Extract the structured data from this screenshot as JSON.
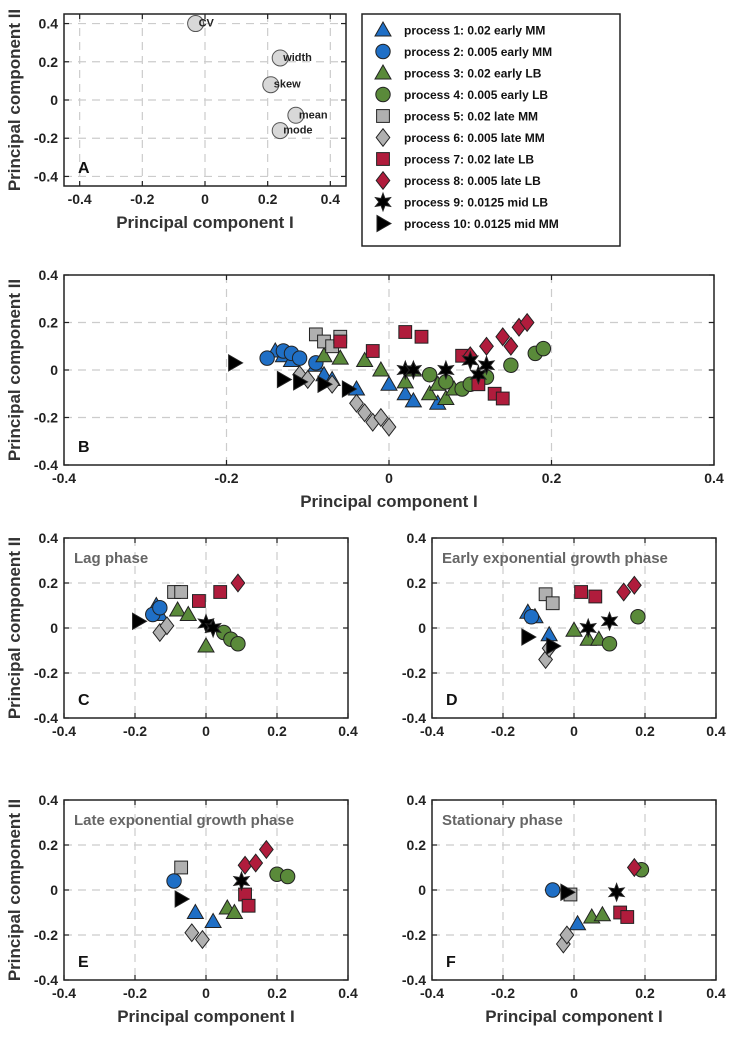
{
  "legend": {
    "entries": [
      {
        "key": "p1",
        "label": "process  1: 0.02 early MM",
        "marker": "triangle-up",
        "color": "#1f6fc6"
      },
      {
        "key": "p2",
        "label": "process  2: 0.005 early MM",
        "marker": "circle",
        "color": "#1f6fc6"
      },
      {
        "key": "p3",
        "label": "process  3: 0.02 early LB",
        "marker": "triangle-up",
        "color": "#5a8a3a"
      },
      {
        "key": "p4",
        "label": "process  4: 0.005 early LB",
        "marker": "circle",
        "color": "#5a8a3a"
      },
      {
        "key": "p5",
        "label": "process  5: 0.02 late MM",
        "marker": "square",
        "color": "#b0b0b0"
      },
      {
        "key": "p6",
        "label": "process  6: 0.005 late MM",
        "marker": "diamond",
        "color": "#b0b0b0"
      },
      {
        "key": "p7",
        "label": "process  7: 0.02 late LB",
        "marker": "square",
        "color": "#b01c3c"
      },
      {
        "key": "p8",
        "label": "process  8: 0.005 late LB",
        "marker": "diamond",
        "color": "#b01c3c"
      },
      {
        "key": "p9",
        "label": "process  9: 0.0125 mid LB",
        "marker": "star",
        "color": "#000000"
      },
      {
        "key": "p10",
        "label": "process 10: 0.0125 mid MM",
        "marker": "triangle-right",
        "color": "#000000"
      }
    ]
  },
  "chart_data": [
    {
      "id": "A",
      "type": "scatter",
      "panel_label": "A",
      "title": "",
      "xlabel": "Principal component I",
      "ylabel": "Principal component II",
      "xlim": [
        -0.45,
        0.45
      ],
      "ylim": [
        -0.45,
        0.45
      ],
      "xticks": [
        "-0.4",
        "-0.2",
        "0",
        "0.2",
        "0.4"
      ],
      "yticks": [
        "-0.4",
        "-0.2",
        "0",
        "0.2",
        "0.4"
      ],
      "xtick_values": [
        -0.4,
        -0.2,
        0,
        0.2,
        0.4
      ],
      "ytick_values": [
        -0.4,
        -0.2,
        0,
        0.2,
        0.4
      ],
      "points": [
        {
          "label": "CV",
          "x": -0.03,
          "y": 0.4
        },
        {
          "label": "width",
          "x": 0.24,
          "y": 0.22
        },
        {
          "label": "skew",
          "x": 0.21,
          "y": 0.08
        },
        {
          "label": "mean",
          "x": 0.29,
          "y": -0.08
        },
        {
          "label": "mode",
          "x": 0.24,
          "y": -0.16
        }
      ]
    },
    {
      "id": "B",
      "type": "scatter",
      "panel_label": "B",
      "title": "",
      "xlabel": "Principal component I",
      "ylabel": "Principal component II",
      "xlim": [
        -0.4,
        0.4
      ],
      "ylim": [
        -0.4,
        0.4
      ],
      "xticks": [
        "-0.4",
        "-0.2",
        "0",
        "0.2",
        "0.4"
      ],
      "yticks": [
        "-0.4",
        "-0.2",
        "0",
        "0.2",
        "0.4"
      ],
      "xtick_values": [
        -0.4,
        -0.2,
        0,
        0.2,
        0.4
      ],
      "ytick_values": [
        -0.4,
        -0.2,
        0,
        0.2,
        0.4
      ],
      "series": [
        {
          "key": "p1",
          "x": [
            -0.14,
            -0.13,
            -0.12,
            -0.09,
            -0.08,
            -0.07,
            -0.04,
            0.0,
            0.02,
            0.03,
            0.06
          ],
          "y": [
            0.08,
            0.06,
            0.04,
            0.02,
            -0.02,
            -0.04,
            -0.08,
            -0.06,
            -0.1,
            -0.13,
            -0.14
          ]
        },
        {
          "key": "p2",
          "x": [
            -0.15,
            -0.13,
            -0.12,
            -0.11,
            -0.09
          ],
          "y": [
            0.05,
            0.08,
            0.07,
            0.05,
            0.03
          ]
        },
        {
          "key": "p3",
          "x": [
            -0.08,
            -0.06,
            -0.03,
            -0.01,
            0.02,
            0.03,
            0.05,
            0.06,
            0.07,
            0.08
          ],
          "y": [
            0.06,
            0.05,
            0.04,
            0.0,
            -0.05,
            0.0,
            -0.1,
            -0.06,
            -0.12,
            -0.08
          ]
        },
        {
          "key": "p4",
          "x": [
            0.05,
            0.07,
            0.09,
            0.1,
            0.12,
            0.15,
            0.18,
            0.19
          ],
          "y": [
            -0.02,
            -0.05,
            -0.08,
            -0.06,
            -0.03,
            0.02,
            0.07,
            0.09
          ]
        },
        {
          "key": "p5",
          "x": [
            -0.09,
            -0.08,
            -0.07,
            -0.06
          ],
          "y": [
            0.15,
            0.12,
            0.1,
            0.14
          ]
        },
        {
          "key": "p6",
          "x": [
            -0.11,
            -0.1,
            -0.07,
            -0.04,
            -0.03,
            -0.02,
            -0.01,
            0.0
          ],
          "y": [
            -0.02,
            -0.04,
            -0.06,
            -0.14,
            -0.18,
            -0.22,
            -0.2,
            -0.24
          ]
        },
        {
          "key": "p7",
          "x": [
            -0.06,
            -0.02,
            0.02,
            0.04,
            0.09,
            0.11,
            0.13,
            0.14
          ],
          "y": [
            0.12,
            0.08,
            0.16,
            0.14,
            0.06,
            -0.06,
            -0.1,
            -0.12
          ]
        },
        {
          "key": "p8",
          "x": [
            0.1,
            0.12,
            0.14,
            0.15,
            0.16,
            0.17
          ],
          "y": [
            0.06,
            0.1,
            0.14,
            0.1,
            0.18,
            0.2
          ]
        },
        {
          "key": "p9",
          "x": [
            0.02,
            0.03,
            0.07,
            0.1,
            0.11,
            0.12
          ],
          "y": [
            0.0,
            0.0,
            0.0,
            0.04,
            -0.02,
            0.02
          ]
        },
        {
          "key": "p10",
          "x": [
            -0.19,
            -0.13,
            -0.11,
            -0.08,
            -0.05
          ],
          "y": [
            0.03,
            -0.04,
            -0.05,
            -0.06,
            -0.08
          ]
        }
      ]
    },
    {
      "id": "C",
      "type": "scatter",
      "panel_label": "C",
      "title": "Lag phase",
      "xlabel": "",
      "ylabel": "Principal component II",
      "xlim": [
        -0.4,
        0.4
      ],
      "ylim": [
        -0.4,
        0.4
      ],
      "xticks": [
        "-0.4",
        "-0.2",
        "0",
        "0.2",
        "0.4"
      ],
      "yticks": [
        "-0.4",
        "-0.2",
        "0",
        "0.2",
        "0.4"
      ],
      "xtick_values": [
        -0.4,
        -0.2,
        0,
        0.2,
        0.4
      ],
      "ytick_values": [
        -0.4,
        -0.2,
        0,
        0.2,
        0.4
      ],
      "series": [
        {
          "key": "p1",
          "x": [
            -0.14,
            -0.13
          ],
          "y": [
            0.1,
            0.06
          ]
        },
        {
          "key": "p2",
          "x": [
            -0.15,
            -0.13
          ],
          "y": [
            0.06,
            0.09
          ]
        },
        {
          "key": "p3",
          "x": [
            -0.08,
            -0.05,
            0.0
          ],
          "y": [
            0.08,
            0.06,
            -0.08
          ]
        },
        {
          "key": "p4",
          "x": [
            0.05,
            0.07,
            0.09
          ],
          "y": [
            -0.02,
            -0.05,
            -0.07
          ]
        },
        {
          "key": "p5",
          "x": [
            -0.09,
            -0.07
          ],
          "y": [
            0.16,
            0.16
          ]
        },
        {
          "key": "p6",
          "x": [
            -0.13,
            -0.11
          ],
          "y": [
            -0.02,
            0.01
          ]
        },
        {
          "key": "p7",
          "x": [
            -0.02,
            0.04
          ],
          "y": [
            0.12,
            0.16
          ]
        },
        {
          "key": "p8",
          "x": [
            0.09
          ],
          "y": [
            0.2
          ]
        },
        {
          "key": "p9",
          "x": [
            0.0,
            0.02
          ],
          "y": [
            0.02,
            0.0
          ]
        },
        {
          "key": "p10",
          "x": [
            -0.19
          ],
          "y": [
            0.03
          ]
        }
      ]
    },
    {
      "id": "D",
      "type": "scatter",
      "panel_label": "D",
      "title": "Early exponential growth phase",
      "xlabel": "",
      "ylabel": "",
      "xlim": [
        -0.4,
        0.4
      ],
      "ylim": [
        -0.4,
        0.4
      ],
      "xticks": [
        "-0.4",
        "-0.2",
        "0",
        "0.2",
        "0.4"
      ],
      "yticks": [
        "-0.4",
        "-0.2",
        "0",
        "0.2",
        "0.4"
      ],
      "xtick_values": [
        -0.4,
        -0.2,
        0,
        0.2,
        0.4
      ],
      "ytick_values": [
        -0.4,
        -0.2,
        0,
        0.2,
        0.4
      ],
      "series": [
        {
          "key": "p1",
          "x": [
            -0.13,
            -0.11,
            -0.07
          ],
          "y": [
            0.07,
            0.05,
            -0.03
          ]
        },
        {
          "key": "p2",
          "x": [
            -0.12
          ],
          "y": [
            0.05
          ]
        },
        {
          "key": "p3",
          "x": [
            0.0,
            0.04,
            0.07
          ],
          "y": [
            -0.01,
            -0.05,
            -0.05
          ]
        },
        {
          "key": "p4",
          "x": [
            0.1,
            0.18
          ],
          "y": [
            -0.07,
            0.05
          ]
        },
        {
          "key": "p5",
          "x": [
            -0.08,
            -0.06
          ],
          "y": [
            0.15,
            0.11
          ]
        },
        {
          "key": "p6",
          "x": [
            -0.08,
            -0.07
          ],
          "y": [
            -0.14,
            -0.09
          ]
        },
        {
          "key": "p7",
          "x": [
            0.02,
            0.06
          ],
          "y": [
            0.16,
            0.14
          ]
        },
        {
          "key": "p8",
          "x": [
            0.14,
            0.17
          ],
          "y": [
            0.16,
            0.19
          ]
        },
        {
          "key": "p9",
          "x": [
            0.04,
            0.1
          ],
          "y": [
            0.0,
            0.03
          ]
        },
        {
          "key": "p10",
          "x": [
            -0.13,
            -0.06
          ],
          "y": [
            -0.04,
            -0.08
          ]
        }
      ]
    },
    {
      "id": "E",
      "type": "scatter",
      "panel_label": "E",
      "title": "Late exponential growth phase",
      "xlabel": "Principal component I",
      "ylabel": "Principal component II",
      "xlim": [
        -0.4,
        0.4
      ],
      "ylim": [
        -0.4,
        0.4
      ],
      "xticks": [
        "-0.4",
        "-0.2",
        "0",
        "0.2",
        "0.4"
      ],
      "yticks": [
        "-0.4",
        "-0.2",
        "0",
        "0.2",
        "0.4"
      ],
      "xtick_values": [
        -0.4,
        -0.2,
        0,
        0.2,
        0.4
      ],
      "ytick_values": [
        -0.4,
        -0.2,
        0,
        0.2,
        0.4
      ],
      "series": [
        {
          "key": "p1",
          "x": [
            -0.03,
            0.02
          ],
          "y": [
            -0.1,
            -0.14
          ]
        },
        {
          "key": "p2",
          "x": [
            -0.09
          ],
          "y": [
            0.04
          ]
        },
        {
          "key": "p3",
          "x": [
            0.06,
            0.08
          ],
          "y": [
            -0.08,
            -0.1
          ]
        },
        {
          "key": "p4",
          "x": [
            0.2,
            0.23
          ],
          "y": [
            0.07,
            0.06
          ]
        },
        {
          "key": "p5",
          "x": [
            -0.07
          ],
          "y": [
            0.1
          ]
        },
        {
          "key": "p6",
          "x": [
            -0.04,
            -0.01
          ],
          "y": [
            -0.19,
            -0.22
          ]
        },
        {
          "key": "p7",
          "x": [
            0.11,
            0.12
          ],
          "y": [
            -0.02,
            -0.07
          ]
        },
        {
          "key": "p8",
          "x": [
            0.11,
            0.14,
            0.17
          ],
          "y": [
            0.11,
            0.12,
            0.18
          ]
        },
        {
          "key": "p9",
          "x": [
            0.1
          ],
          "y": [
            0.04
          ]
        },
        {
          "key": "p10",
          "x": [
            -0.07
          ],
          "y": [
            -0.04
          ]
        }
      ]
    },
    {
      "id": "F",
      "type": "scatter",
      "panel_label": "F",
      "title": "Stationary phase",
      "xlabel": "Principal component I",
      "ylabel": "",
      "xlim": [
        -0.4,
        0.4
      ],
      "ylim": [
        -0.4,
        0.4
      ],
      "xticks": [
        "-0.4",
        "-0.2",
        "0",
        "0.2",
        "0.4"
      ],
      "yticks": [
        "-0.4",
        "-0.2",
        "0",
        "0.2",
        "0.4"
      ],
      "xtick_values": [
        -0.4,
        -0.2,
        0,
        0.2,
        0.4
      ],
      "ytick_values": [
        -0.4,
        -0.2,
        0,
        0.2,
        0.4
      ],
      "series": [
        {
          "key": "p1",
          "x": [
            0.01
          ],
          "y": [
            -0.15
          ]
        },
        {
          "key": "p2",
          "x": [
            -0.06
          ],
          "y": [
            0.0
          ]
        },
        {
          "key": "p3",
          "x": [
            0.05,
            0.08
          ],
          "y": [
            -0.12,
            -0.11
          ]
        },
        {
          "key": "p4",
          "x": [
            0.19
          ],
          "y": [
            0.09
          ]
        },
        {
          "key": "p5",
          "x": [
            -0.01
          ],
          "y": [
            -0.02
          ]
        },
        {
          "key": "p6",
          "x": [
            -0.03,
            -0.02
          ],
          "y": [
            -0.24,
            -0.2
          ]
        },
        {
          "key": "p7",
          "x": [
            0.13,
            0.15
          ],
          "y": [
            -0.1,
            -0.12
          ]
        },
        {
          "key": "p8",
          "x": [
            0.17
          ],
          "y": [
            0.1
          ]
        },
        {
          "key": "p9",
          "x": [
            0.12
          ],
          "y": [
            -0.01
          ]
        },
        {
          "key": "p10",
          "x": [
            -0.02
          ],
          "y": [
            -0.01
          ]
        }
      ]
    }
  ]
}
